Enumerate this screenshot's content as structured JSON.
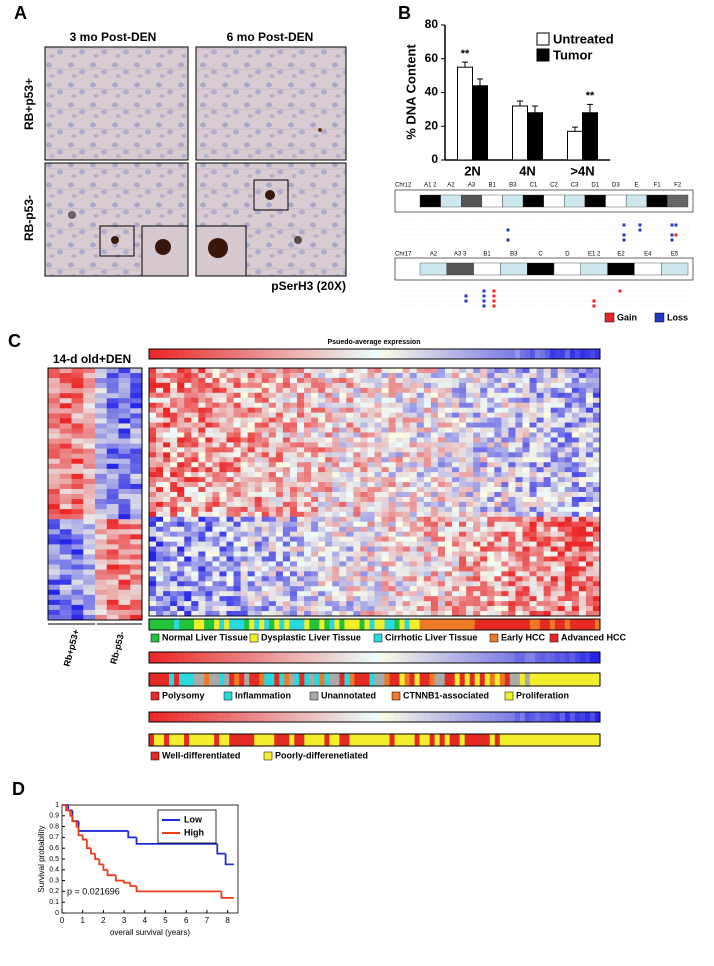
{
  "panels": {
    "a": "A",
    "b": "B",
    "c": "C",
    "d": "D"
  },
  "panel_a": {
    "columns": [
      "3 mo Post-DEN",
      "6 mo Post-DEN"
    ],
    "rows": [
      "RB+p53+",
      "RB-p53-"
    ],
    "caption": "pSerH3 (20X)"
  },
  "panel_b_cnv": {
    "chromosomes": [
      {
        "name": "Chr12",
        "bands": [
          "A1 2",
          "A2",
          "A3",
          "B1",
          "B3",
          "C1",
          "C2",
          "C3",
          "D1",
          "D3",
          "E",
          "F1",
          "F2"
        ]
      },
      {
        "name": "Chr17",
        "bands": [
          "A2",
          "A3 3",
          "B1",
          "B3",
          "C",
          "D",
          "E1 2",
          "E2",
          "E4",
          "E5"
        ]
      }
    ],
    "legend": [
      {
        "name": "Gain",
        "color": "#e8262a"
      },
      {
        "name": "Loss",
        "color": "#2438c8"
      }
    ]
  },
  "panel_c": {
    "left_title": "14-d old+DEN",
    "top_title": "Psuedo-average expression",
    "row_groups": [
      "Rb+p53+",
      "Rb-p53-"
    ],
    "legends": [
      [
        {
          "name": "Normal Liver Tissue",
          "color": "#22c33a"
        },
        {
          "name": "Dysplastic Liver Tissue",
          "color": "#f2ee2a"
        },
        {
          "name": "Cirrhotic Liver Tissue",
          "color": "#2ad8e0"
        },
        {
          "name": "Early HCC",
          "color": "#ee7a26"
        },
        {
          "name": "Advanced HCC",
          "color": "#e42a22"
        }
      ],
      [
        {
          "name": "Polysomy",
          "color": "#e42a22"
        },
        {
          "name": "Inflammation",
          "color": "#2ad8e0"
        },
        {
          "name": "Unannotated",
          "color": "#aaaaaa"
        },
        {
          "name": "CTNNB1-associated",
          "color": "#ee7a26"
        },
        {
          "name": "Proliferation",
          "color": "#f2ee2a"
        }
      ],
      [
        {
          "name": "Well-differentiated",
          "color": "#e42a22"
        },
        {
          "name": "Poorly-differenetiated",
          "color": "#f2ee2a"
        }
      ]
    ]
  },
  "chart_data": [
    {
      "type": "bar",
      "ylabel": "% DNA Content",
      "categories": [
        "2N",
        "4N",
        ">4N"
      ],
      "series": [
        {
          "name": "Untreated",
          "color": "#ffffff",
          "values": [
            55,
            32,
            17
          ],
          "errors": [
            3,
            3,
            2.5
          ]
        },
        {
          "name": "Tumor",
          "color": "#000000",
          "values": [
            44,
            28,
            28
          ],
          "errors": [
            4,
            4,
            5
          ]
        }
      ],
      "annotations": [
        "**",
        "**"
      ],
      "ylim": [
        0,
        80
      ],
      "yticks": [
        0,
        20,
        40,
        60,
        80
      ]
    },
    {
      "type": "line",
      "xlabel": "overall survival (years)",
      "ylabel": "Survival probability",
      "annotation": "p = 0.021696",
      "legend": "top-right",
      "series": [
        {
          "name": "Low",
          "color": "#1f2bd6",
          "x": [
            0,
            0.3,
            0.5,
            0.8,
            3.2,
            3.6,
            7.5,
            7.9,
            8.3
          ],
          "values": [
            1,
            0.95,
            0.85,
            0.76,
            0.7,
            0.64,
            0.55,
            0.45,
            0.45
          ]
        },
        {
          "name": "High",
          "color": "#ee3b1a",
          "x": [
            0,
            0.2,
            0.4,
            0.5,
            0.7,
            0.8,
            1.0,
            1.2,
            1.4,
            1.6,
            1.8,
            2.0,
            2.2,
            2.6,
            3.0,
            3.3,
            3.6,
            7.7,
            8.3
          ],
          "values": [
            1,
            0.95,
            0.9,
            0.85,
            0.8,
            0.72,
            0.68,
            0.6,
            0.55,
            0.5,
            0.45,
            0.4,
            0.35,
            0.3,
            0.28,
            0.25,
            0.2,
            0.14,
            0.14
          ]
        }
      ],
      "xlim": [
        0,
        8.5
      ],
      "xticks": [
        0,
        1,
        2,
        3,
        4,
        5,
        6,
        7,
        8
      ],
      "ylim": [
        0,
        1
      ],
      "yticks": [
        0,
        0.1,
        0.2,
        0.3,
        0.4,
        0.5,
        0.6,
        0.7,
        0.8,
        0.9,
        1
      ]
    }
  ]
}
